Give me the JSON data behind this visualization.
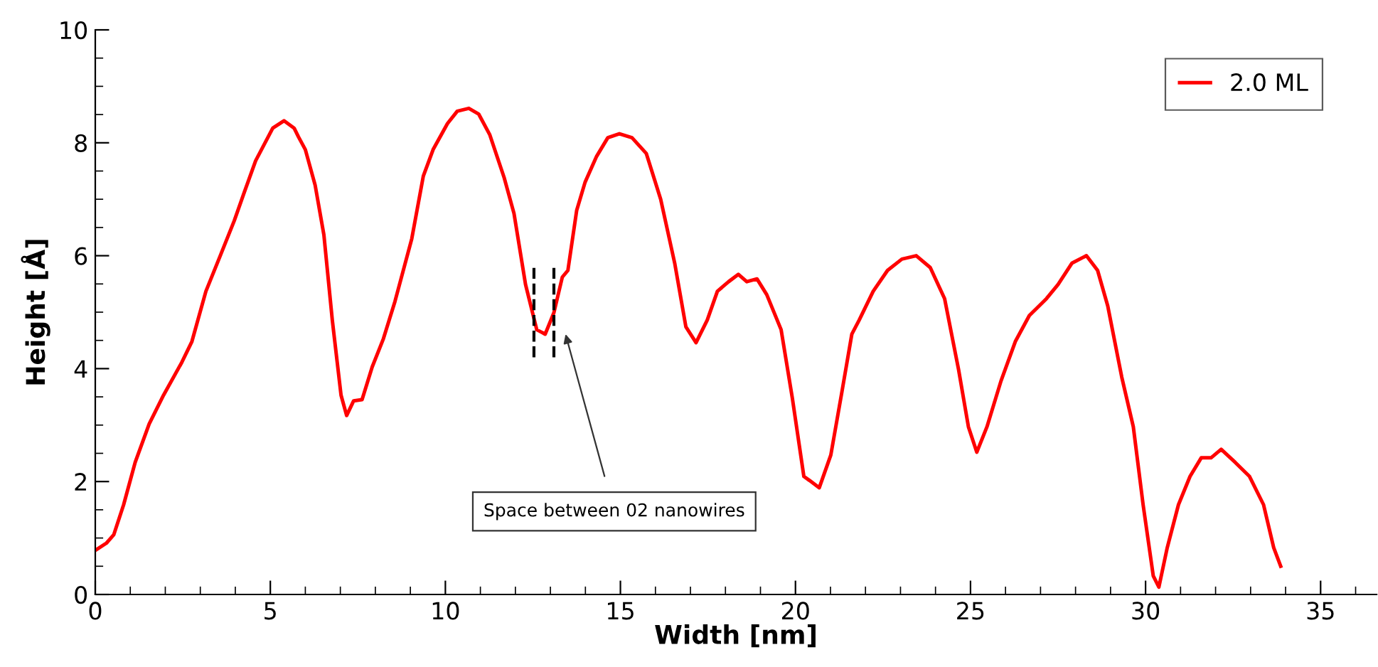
{
  "chart_data": {
    "type": "line",
    "xlabel": "Width [nm]",
    "ylabel": "Height [Å]",
    "xlim": [
      0,
      36.6
    ],
    "ylim": [
      0,
      10
    ],
    "xticks": [
      0,
      5,
      10,
      15,
      20,
      25,
      30,
      35
    ],
    "yticks": [
      0,
      2,
      4,
      6,
      8,
      10
    ],
    "grid": false,
    "legend": "top right",
    "marker": "none",
    "line_style": "solid",
    "ref_lines": [
      {
        "axis": "x",
        "value": 12.53,
        "color": "#000000",
        "line_style": "dashed"
      },
      {
        "axis": "x",
        "value": 13.1,
        "color": "#000000",
        "line_style": "dashed"
      }
    ],
    "annotations": [
      "Space between 02 nanowires"
    ],
    "series": [
      {
        "name": "2.0 ML",
        "color": "#ff0000",
        "x": [
          0,
          0.32,
          0.53,
          0.81,
          1.14,
          1.54,
          1.95,
          2.47,
          2.76,
          3.16,
          3.57,
          3.97,
          4.26,
          4.58,
          5.07,
          5.39,
          5.68,
          5.8,
          6.0,
          6.28,
          6.53,
          6.77,
          7.02,
          7.18,
          7.38,
          7.62,
          7.91,
          8.23,
          8.56,
          9.04,
          9.37,
          9.65,
          10.06,
          10.34,
          10.67,
          10.95,
          11.27,
          11.68,
          11.96,
          12.29,
          12.61,
          12.85,
          13.1,
          13.34,
          13.5,
          13.75,
          13.99,
          14.32,
          14.64,
          14.97,
          15.33,
          15.74,
          16.15,
          16.55,
          16.87,
          17.16,
          17.48,
          17.77,
          18.09,
          18.37,
          18.61,
          18.9,
          19.18,
          19.59,
          19.91,
          20.24,
          20.4,
          20.68,
          21.01,
          21.33,
          21.61,
          21.82,
          22.22,
          22.63,
          23.04,
          23.45,
          23.85,
          24.26,
          24.66,
          24.94,
          25.18,
          25.47,
          25.87,
          26.28,
          26.68,
          27.17,
          27.5,
          27.9,
          28.31,
          28.63,
          28.92,
          29.32,
          29.65,
          29.93,
          30.22,
          30.38,
          30.62,
          30.94,
          31.27,
          31.59,
          31.87,
          32.16,
          32.56,
          32.97,
          33.37,
          33.66,
          33.86
        ],
        "values": [
          0.78,
          0.91,
          1.06,
          1.59,
          2.34,
          3.02,
          3.53,
          4.11,
          4.48,
          5.37,
          6.0,
          6.62,
          7.13,
          7.68,
          8.26,
          8.39,
          8.26,
          8.11,
          7.88,
          7.25,
          6.37,
          4.86,
          3.53,
          3.17,
          3.43,
          3.45,
          4.03,
          4.53,
          5.19,
          6.3,
          7.41,
          7.88,
          8.34,
          8.56,
          8.61,
          8.51,
          8.14,
          7.38,
          6.75,
          5.49,
          4.69,
          4.61,
          4.99,
          5.62,
          5.74,
          6.8,
          7.3,
          7.76,
          8.09,
          8.16,
          8.09,
          7.81,
          7.0,
          5.87,
          4.74,
          4.46,
          4.86,
          5.37,
          5.54,
          5.67,
          5.54,
          5.59,
          5.31,
          4.69,
          3.48,
          2.09,
          2.02,
          1.89,
          2.47,
          3.6,
          4.61,
          4.86,
          5.37,
          5.74,
          5.94,
          6.0,
          5.79,
          5.24,
          3.98,
          2.97,
          2.52,
          2.97,
          3.78,
          4.48,
          4.94,
          5.24,
          5.49,
          5.87,
          6.0,
          5.74,
          5.11,
          3.85,
          2.97,
          1.59,
          0.33,
          0.13,
          0.83,
          1.59,
          2.09,
          2.42,
          2.42,
          2.57,
          2.34,
          2.09,
          1.59,
          0.83,
          0.5
        ]
      }
    ]
  }
}
